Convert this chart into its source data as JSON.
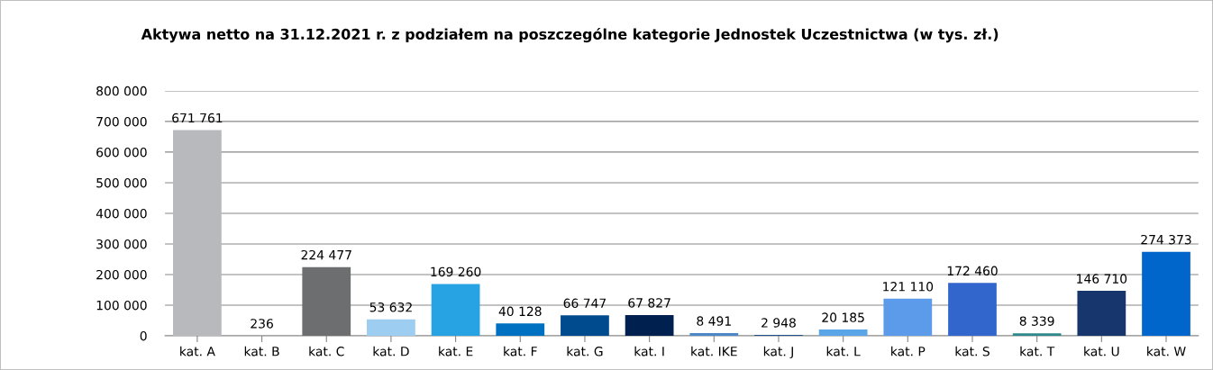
{
  "chart_data": {
    "type": "bar",
    "title": "Aktywa netto na 31.12.2021 r. z podziałem na poszczególne kategorie Jednostek Uczestnictwa (w tys. zł.)",
    "categories": [
      "kat. A",
      "kat. B",
      "kat. C",
      "kat. D",
      "kat. E",
      "kat. F",
      "kat. G",
      "kat. I",
      "kat. IKE",
      "kat. J",
      "kat. L",
      "kat. P",
      "kat. S",
      "kat. T",
      "kat. U",
      "kat. W"
    ],
    "values": [
      671761,
      236,
      224477,
      53632,
      169260,
      40128,
      66747,
      67827,
      8491,
      2948,
      20185,
      121110,
      172460,
      8339,
      146710,
      274373
    ],
    "value_labels": [
      "671 761",
      "236",
      "224 477",
      "53 632",
      "169 260",
      "40 128",
      "66 747",
      "67 827",
      "8 491",
      "2 948",
      "20 185",
      "121 110",
      "172 460",
      "8 339",
      "146 710",
      "274 373"
    ],
    "colors": [
      "#b8b9bd",
      "#8fb4dc",
      "#6d6e70",
      "#9dcdf0",
      "#27a2e3",
      "#0070c0",
      "#004b8d",
      "#002050",
      "#4a86c8",
      "#1f4e8c",
      "#5aa5e8",
      "#5b9bea",
      "#3366cc",
      "#2e8a8a",
      "#17366e",
      "#0066cc"
    ],
    "ylim": [
      0,
      800000
    ],
    "yticks": [
      {
        "value": 0,
        "label": "0"
      },
      {
        "value": 100000,
        "label": "100 000"
      },
      {
        "value": 200000,
        "label": "200 000"
      },
      {
        "value": 300000,
        "label": "300 000"
      },
      {
        "value": 400000,
        "label": "400 000"
      },
      {
        "value": 500000,
        "label": "500 000"
      },
      {
        "value": 600000,
        "label": "600 000"
      },
      {
        "value": 700000,
        "label": "700 000"
      },
      {
        "value": 800000,
        "label": "800 000"
      }
    ],
    "grid": "y"
  }
}
